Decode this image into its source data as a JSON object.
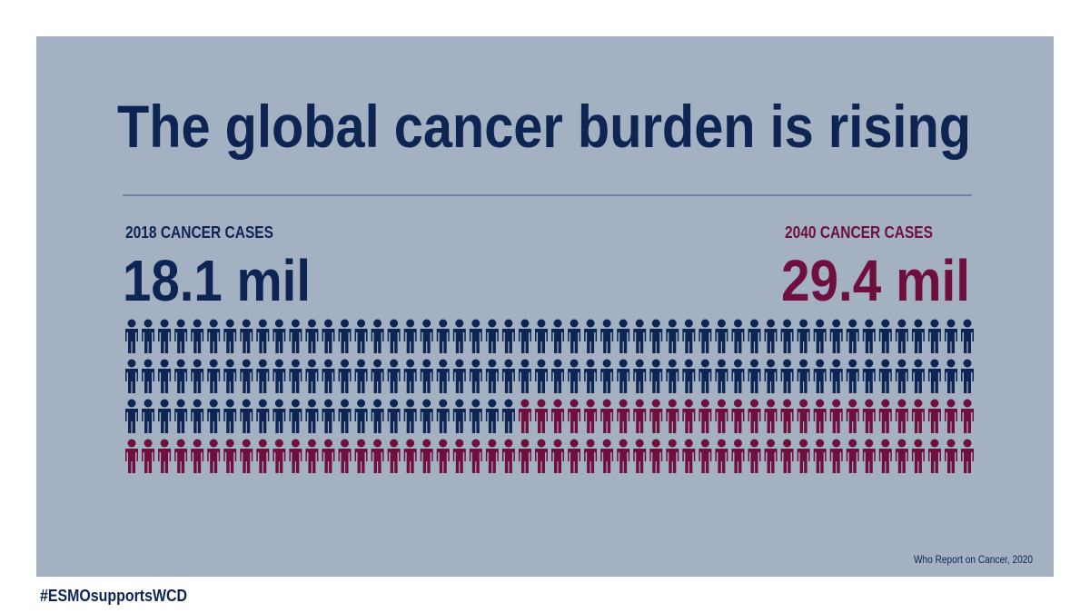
{
  "chart_data": {
    "type": "pictogram",
    "title": "The global cancer burden is rising",
    "series": [
      {
        "name": "2018 CANCER CASES",
        "color": "#0d2552",
        "values": [
          18.1
        ],
        "value_labels": [
          "18.1 mil"
        ]
      },
      {
        "name": "2040 CANCER CASES",
        "color": "#6e0f3f",
        "values": [
          29.4
        ],
        "value_labels": [
          "29.4 mil"
        ]
      }
    ],
    "source": "Who Report on Cancer, 2020"
  },
  "hashtag": "#ESMOsupportsWCD"
}
